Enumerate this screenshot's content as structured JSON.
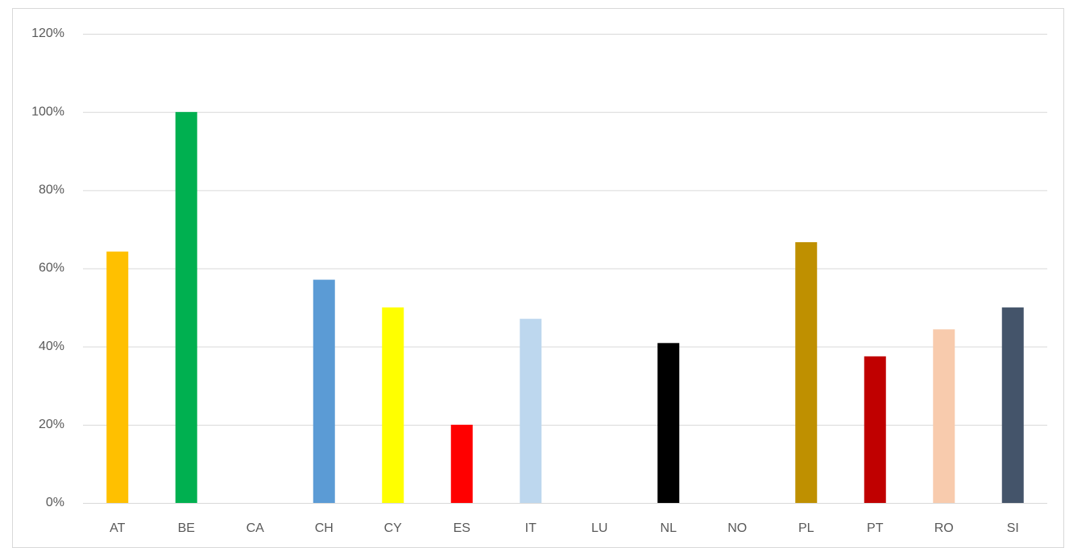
{
  "chart_data": {
    "type": "bar",
    "categories": [
      "AT",
      "BE",
      "CA",
      "CH",
      "CY",
      "ES",
      "IT",
      "LU",
      "NL",
      "NO",
      "PL",
      "PT",
      "RO",
      "SI"
    ],
    "values": [
      64.3,
      100,
      0,
      57.1,
      50,
      20,
      47.1,
      0,
      40.9,
      0,
      66.7,
      37.5,
      44.4,
      50
    ],
    "colors": [
      "#FFC000",
      "#00B050",
      null,
      "#5B9BD5",
      "#FFFF00",
      "#FF0000",
      "#BDD7EE",
      null,
      "#000000",
      null,
      "#BF9000",
      "#C00000",
      "#F8CBAD",
      "#44546A"
    ],
    "ylim": [
      0,
      120
    ],
    "yticks": [
      {
        "value": 0,
        "label": "0%"
      },
      {
        "value": 20,
        "label": "20%"
      },
      {
        "value": 40,
        "label": "40%"
      },
      {
        "value": 60,
        "label": "60%"
      },
      {
        "value": 80,
        "label": "80%"
      },
      {
        "value": 100,
        "label": "100%"
      },
      {
        "value": 120,
        "label": "120%"
      }
    ],
    "grid": true
  }
}
